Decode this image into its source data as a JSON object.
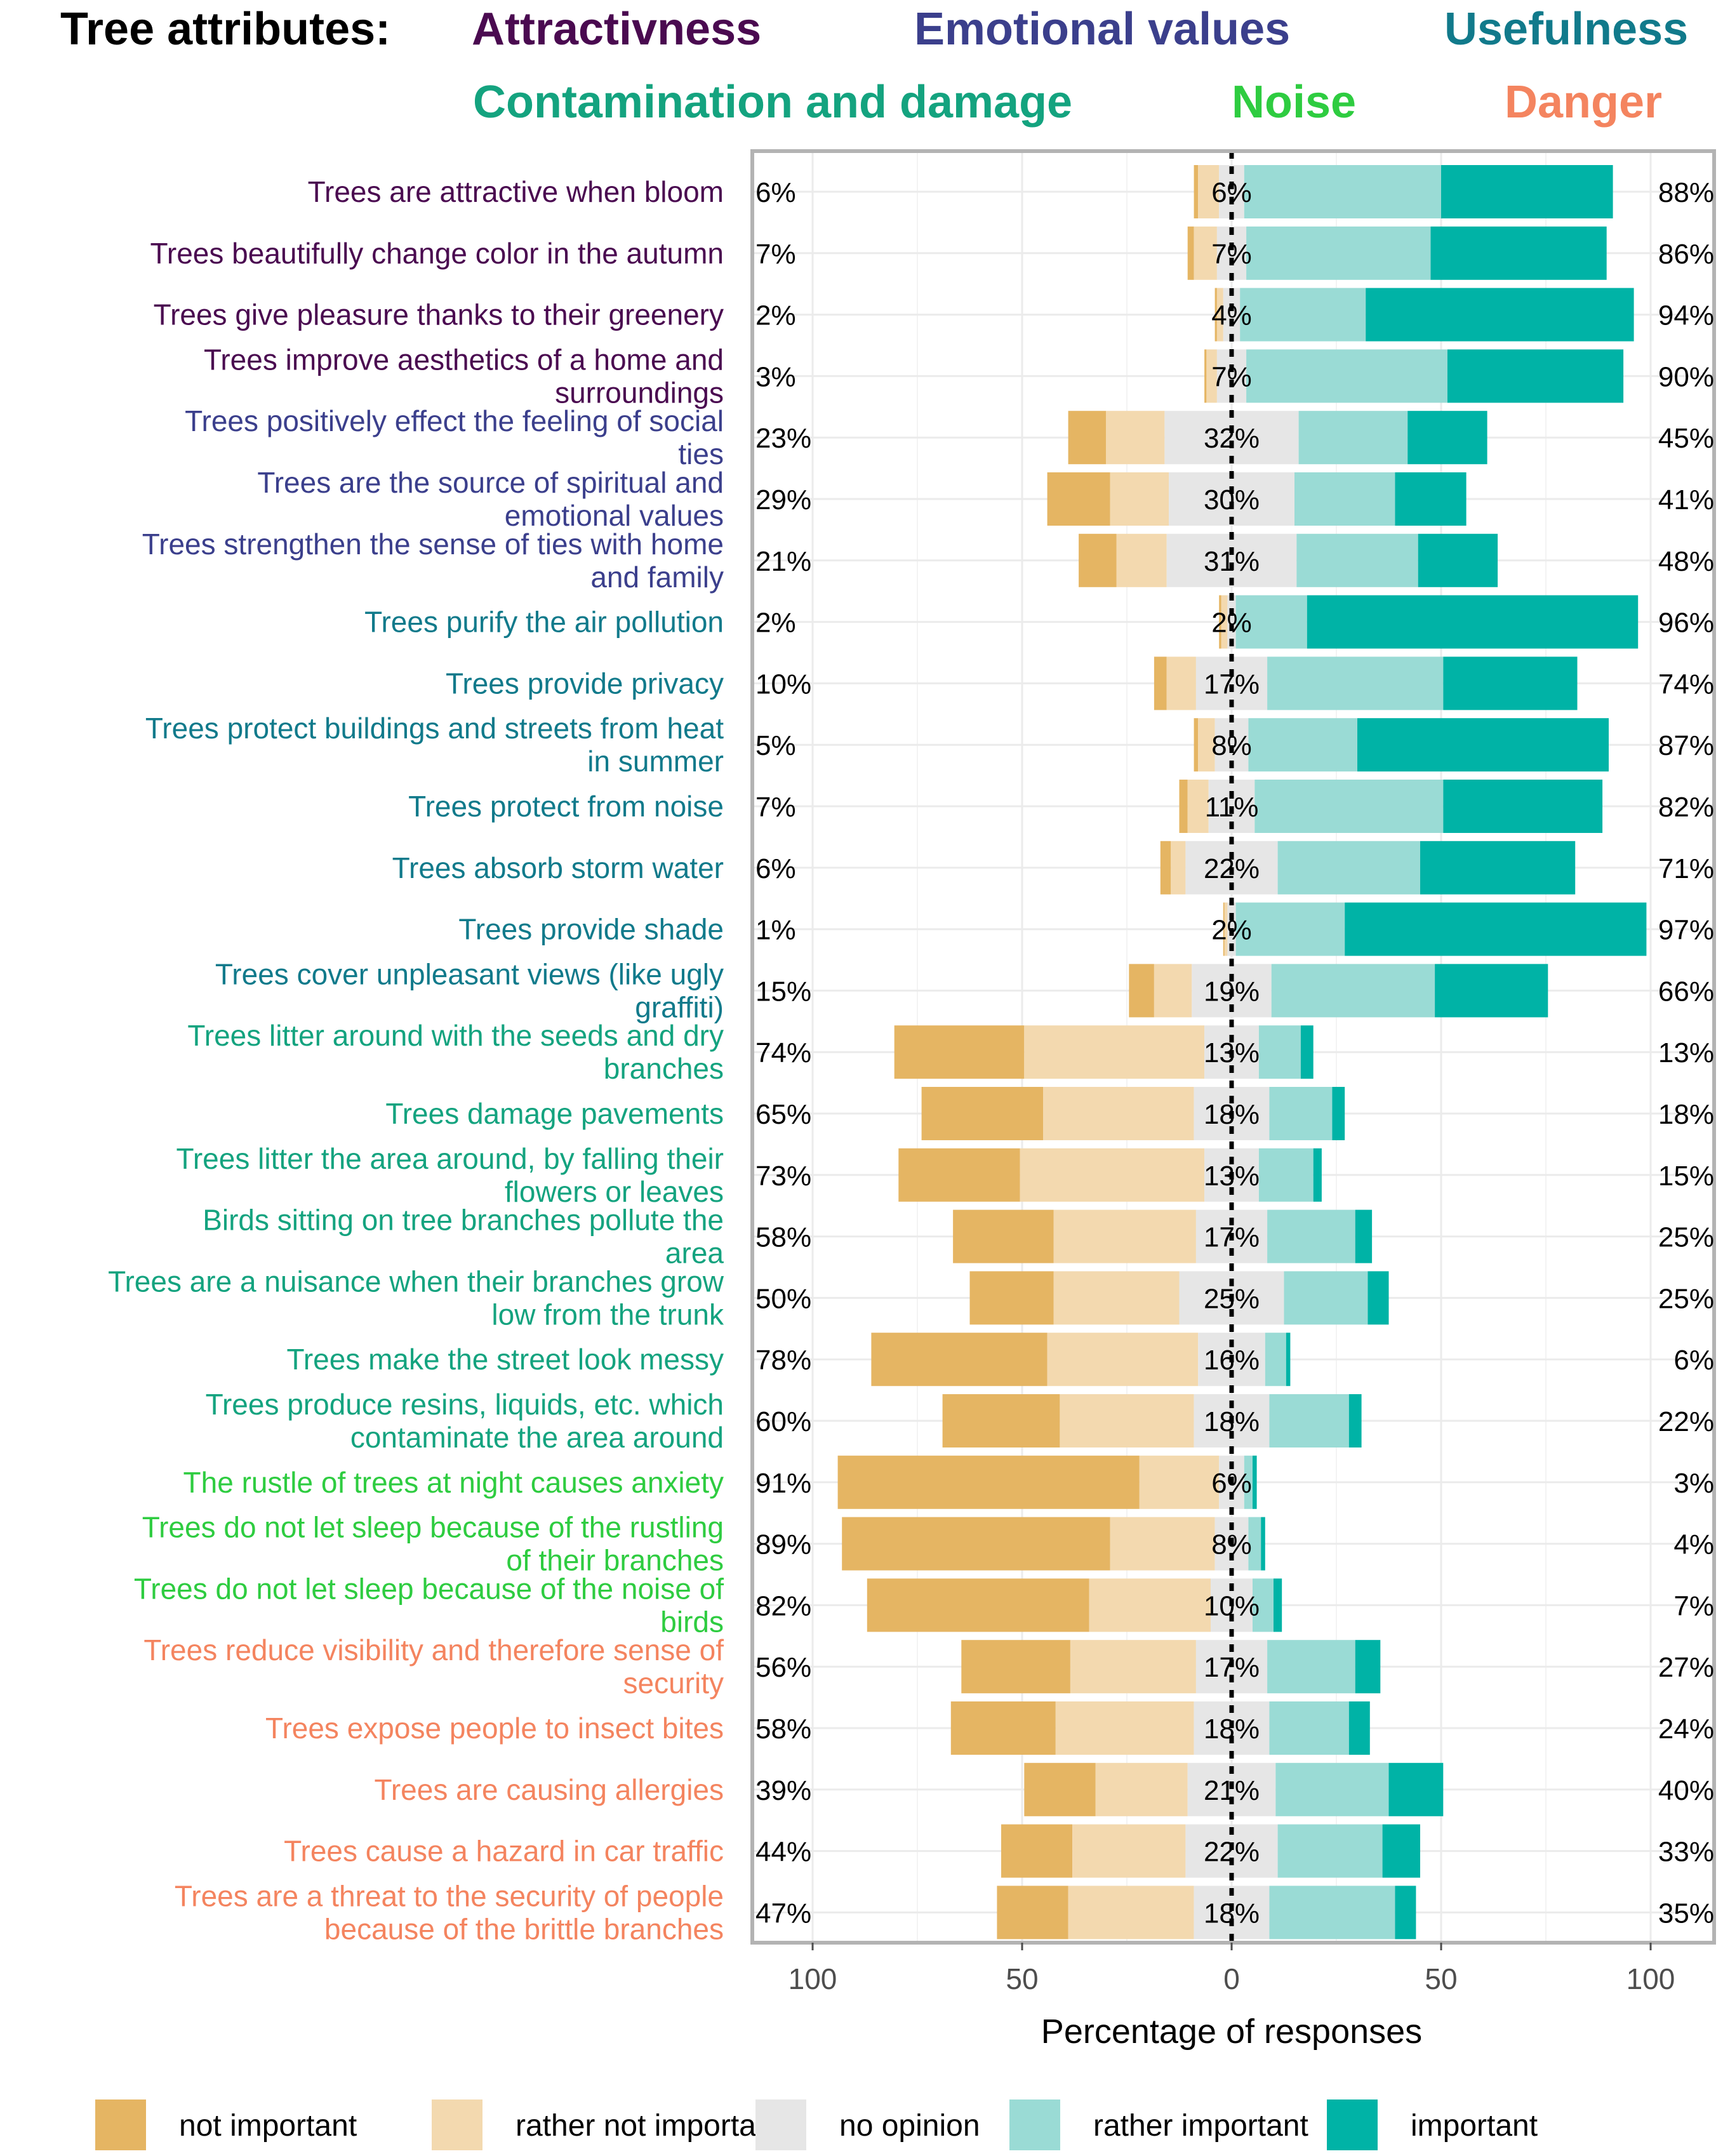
{
  "header": {
    "prefix": "Tree attributes:",
    "categories": [
      {
        "key": "attr",
        "label": "Attractivness",
        "color": "#4A0A50"
      },
      {
        "key": "emot",
        "label": "Emotional values",
        "color": "#3B3F8C"
      },
      {
        "key": "use",
        "label": "Usefulness",
        "color": "#117A8B"
      },
      {
        "key": "cont",
        "label": "Contamination and damage",
        "color": "#14A37F"
      },
      {
        "key": "noise",
        "label": "Noise",
        "color": "#2ECC40"
      },
      {
        "key": "danger",
        "label": "Danger",
        "color": "#F4845F"
      }
    ]
  },
  "legend": [
    {
      "key": "ni",
      "label": "not important",
      "color": "#E5B563"
    },
    {
      "key": "rni",
      "label": "rather not important",
      "color": "#F3D9AF"
    },
    {
      "key": "no",
      "label": "no opinion",
      "color": "#E6E6E6"
    },
    {
      "key": "ri",
      "label": "rather important",
      "color": "#9ADBD5"
    },
    {
      "key": "imp",
      "label": "important",
      "color": "#00B3A6"
    }
  ],
  "chart_data": {
    "type": "bar",
    "subtype": "diverging-stacked-horizontal",
    "xlabel": "Percentage of responses",
    "xlim": [
      -100,
      100
    ],
    "xticks": [
      {
        "value": -100,
        "label": "100"
      },
      {
        "value": -50,
        "label": "50"
      },
      {
        "value": 0,
        "label": "0"
      },
      {
        "value": 50,
        "label": "50"
      },
      {
        "value": 100,
        "label": "100"
      }
    ],
    "series": [
      "not important",
      "rather not important",
      "no opinion",
      "rather important",
      "important"
    ],
    "rows": [
      {
        "label": "Trees are attractive when bloom",
        "cat": "attr",
        "values": [
          1,
          5,
          6,
          47,
          41
        ],
        "left": "6%",
        "mid": "6%",
        "right": "88%"
      },
      {
        "label": "Trees beautifully change color in the autumn",
        "cat": "attr",
        "values": [
          1.5,
          5.5,
          7,
          44,
          42
        ],
        "left": "7%",
        "mid": "7%",
        "right": "86%"
      },
      {
        "label": "Trees give pleasure thanks to their greenery",
        "cat": "attr",
        "values": [
          0.5,
          1.5,
          4,
          30,
          64
        ],
        "left": "2%",
        "mid": "4%",
        "right": "94%"
      },
      {
        "label": "Trees improve aesthetics of a home and surroundings",
        "cat": "attr",
        "values": [
          0.5,
          2.5,
          7,
          48,
          42
        ],
        "left": "3%",
        "mid": "7%",
        "right": "90%"
      },
      {
        "label": "Trees positively effect the feeling of social ties",
        "cat": "emot",
        "values": [
          9,
          14,
          32,
          26,
          19
        ],
        "left": "23%",
        "mid": "32%",
        "right": "45%"
      },
      {
        "label": "Trees are the source of spiritual and emotional values",
        "cat": "emot",
        "values": [
          15,
          14,
          30,
          24,
          17
        ],
        "left": "29%",
        "mid": "30%",
        "right": "41%"
      },
      {
        "label": "Trees strengthen the sense of ties with home and family",
        "cat": "emot",
        "values": [
          9,
          12,
          31,
          29,
          19
        ],
        "left": "21%",
        "mid": "31%",
        "right": "48%"
      },
      {
        "label": "Trees purify the air pollution",
        "cat": "use",
        "values": [
          0.5,
          1.5,
          2,
          17,
          79
        ],
        "left": "2%",
        "mid": "2%",
        "right": "96%"
      },
      {
        "label": "Trees provide privacy",
        "cat": "use",
        "values": [
          3,
          7,
          17,
          42,
          32
        ],
        "left": "10%",
        "mid": "17%",
        "right": "74%"
      },
      {
        "label": "Trees protect buildings and streets from heat in summer",
        "cat": "use",
        "values": [
          1,
          4,
          8,
          26,
          60
        ],
        "left": "5%",
        "mid": "8%",
        "right": "87%"
      },
      {
        "label": "Trees protect from noise",
        "cat": "use",
        "values": [
          2,
          5,
          11,
          45,
          38
        ],
        "left": "7%",
        "mid": "11%",
        "right": "82%"
      },
      {
        "label": "Trees absorb storm water",
        "cat": "use",
        "values": [
          2.5,
          3.5,
          22,
          34,
          37
        ],
        "left": "6%",
        "mid": "22%",
        "right": "71%"
      },
      {
        "label": "Trees provide shade",
        "cat": "use",
        "values": [
          0.3,
          0.7,
          2,
          26,
          72
        ],
        "left": "1%",
        "mid": "2%",
        "right": "97%"
      },
      {
        "label": "Trees cover unpleasant views (like ugly graffiti)",
        "cat": "use",
        "values": [
          6,
          9,
          19,
          39,
          27
        ],
        "left": "15%",
        "mid": "19%",
        "right": "66%"
      },
      {
        "label": "Trees litter around with the seeds and dry branches",
        "cat": "cont",
        "values": [
          31,
          43,
          13,
          10,
          3
        ],
        "left": "74%",
        "mid": "13%",
        "right": "13%"
      },
      {
        "label": "Trees damage pavements",
        "cat": "cont",
        "values": [
          29,
          36,
          18,
          15,
          3
        ],
        "left": "65%",
        "mid": "18%",
        "right": "18%"
      },
      {
        "label": "Trees litter the area around, by falling their flowers or leaves",
        "cat": "cont",
        "values": [
          29,
          44,
          13,
          13,
          2
        ],
        "left": "73%",
        "mid": "13%",
        "right": "15%"
      },
      {
        "label": "Birds sitting on tree branches pollute the area",
        "cat": "cont",
        "values": [
          24,
          34,
          17,
          21,
          4
        ],
        "left": "58%",
        "mid": "17%",
        "right": "25%"
      },
      {
        "label": "Trees are a nuisance when their branches grow low from the trunk",
        "cat": "cont",
        "values": [
          20,
          30,
          25,
          20,
          5
        ],
        "left": "50%",
        "mid": "25%",
        "right": "25%"
      },
      {
        "label": "Trees make the street look messy",
        "cat": "cont",
        "values": [
          42,
          36,
          16,
          5,
          1
        ],
        "left": "78%",
        "mid": "16%",
        "right": "6%"
      },
      {
        "label": "Trees produce resins, liquids, etc. which contaminate the area around",
        "cat": "cont",
        "values": [
          28,
          32,
          18,
          19,
          3
        ],
        "left": "60%",
        "mid": "18%",
        "right": "22%"
      },
      {
        "label": "The rustle of trees at night causes anxiety",
        "cat": "noise",
        "values": [
          72,
          19,
          6,
          2,
          1
        ],
        "left": "91%",
        "mid": "6%",
        "right": "3%"
      },
      {
        "label": "Trees do not let sleep because of the rustling of their branches",
        "cat": "noise",
        "values": [
          64,
          25,
          8,
          3,
          1
        ],
        "left": "89%",
        "mid": "8%",
        "right": "4%"
      },
      {
        "label": "Trees do not let sleep because of the noise of birds",
        "cat": "noise",
        "values": [
          53,
          29,
          10,
          5,
          2
        ],
        "left": "82%",
        "mid": "10%",
        "right": "7%"
      },
      {
        "label": "Trees reduce visibility and therefore sense of security",
        "cat": "danger",
        "values": [
          26,
          30,
          17,
          21,
          6
        ],
        "left": "56%",
        "mid": "17%",
        "right": "27%"
      },
      {
        "label": "Trees expose people to insect bites",
        "cat": "danger",
        "values": [
          25,
          33,
          18,
          19,
          5
        ],
        "left": "58%",
        "mid": "18%",
        "right": "24%"
      },
      {
        "label": "Trees are causing allergies",
        "cat": "danger",
        "values": [
          17,
          22,
          21,
          27,
          13
        ],
        "left": "39%",
        "mid": "21%",
        "right": "40%"
      },
      {
        "label": "Trees cause a hazard in car traffic",
        "cat": "danger",
        "values": [
          17,
          27,
          22,
          25,
          9
        ],
        "left": "44%",
        "mid": "22%",
        "right": "33%"
      },
      {
        "label": "Trees are a threat to the security of people because of the brittle branches",
        "cat": "danger",
        "values": [
          17,
          30,
          18,
          30,
          5
        ],
        "left": "47%",
        "mid": "18%",
        "right": "35%"
      }
    ]
  }
}
